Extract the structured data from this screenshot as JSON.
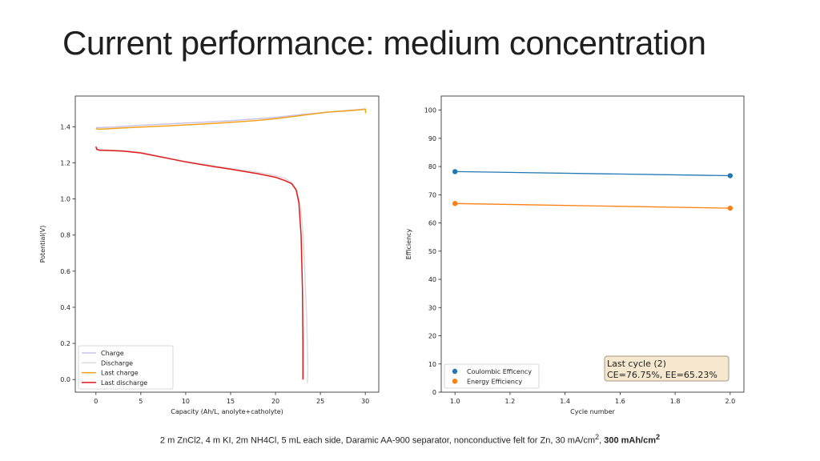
{
  "slide": {
    "title": "Current performance: medium concentration",
    "caption_pre": "2 m ZnCl2, 4 m KI, 2m NH4Cl, 5 mL each side, Daramic AA-900 separator, nonconductive felt for Zn, 30 mA/cm",
    "caption_sup": "2",
    "caption_sep": ", ",
    "caption_bold": "300 mAh/cm",
    "caption_bold_sup": "2"
  },
  "chart_data": [
    {
      "type": "line",
      "title": "",
      "xlabel": "Capacity (Ah/L, anolyte+catholyte)",
      "ylabel": "Potential(V)",
      "xlim": [
        -2.3,
        31.5
      ],
      "ylim": [
        -0.07,
        1.57
      ],
      "xticks": [
        0,
        5,
        10,
        15,
        20,
        25,
        30
      ],
      "yticks": [
        0.0,
        0.2,
        0.4,
        0.6,
        0.8,
        1.0,
        1.2,
        1.4
      ],
      "grid": false,
      "legend_position": "lower-left",
      "series": [
        {
          "name": "Charge",
          "color": "#c9c3e6",
          "x": [
            0,
            2,
            5,
            10,
            15,
            20,
            23,
            26,
            28.5,
            30
          ],
          "y": [
            1.395,
            1.398,
            1.408,
            1.42,
            1.433,
            1.452,
            1.468,
            1.482,
            1.492,
            1.498
          ]
        },
        {
          "name": "Discharge",
          "color": "#dcdcdc",
          "x": [
            0,
            0.2,
            1,
            3,
            5,
            8,
            10,
            13,
            15,
            18,
            20,
            21,
            21.7,
            22.3,
            22.8,
            23.1,
            23.3,
            23.5,
            23.6,
            23.55
          ],
          "y": [
            1.285,
            1.275,
            1.272,
            1.268,
            1.258,
            1.228,
            1.208,
            1.185,
            1.17,
            1.148,
            1.13,
            1.115,
            1.095,
            1.055,
            0.96,
            0.79,
            0.55,
            0.3,
            0.06,
            -0.02
          ]
        },
        {
          "name": "Last charge",
          "color": "#f5a21b",
          "x": [
            0,
            0.3,
            1,
            3,
            5,
            8,
            10,
            13,
            15,
            18,
            20,
            22,
            24,
            25,
            26,
            27,
            28,
            29,
            29.5,
            30,
            30.05
          ],
          "y": [
            1.39,
            1.386,
            1.388,
            1.393,
            1.398,
            1.405,
            1.41,
            1.418,
            1.424,
            1.435,
            1.445,
            1.457,
            1.47,
            1.476,
            1.482,
            1.485,
            1.488,
            1.492,
            1.494,
            1.498,
            1.475
          ]
        },
        {
          "name": "Last discharge",
          "color": "#e31a1c",
          "x": [
            0,
            0.1,
            0.4,
            1,
            3,
            5,
            8,
            10,
            13,
            15,
            18,
            20,
            21,
            21.8,
            22.3,
            22.6,
            22.85,
            23.0,
            23.05,
            23.05
          ],
          "y": [
            1.29,
            1.275,
            1.27,
            1.269,
            1.265,
            1.255,
            1.225,
            1.205,
            1.18,
            1.165,
            1.14,
            1.12,
            1.103,
            1.085,
            1.05,
            0.98,
            0.8,
            0.5,
            0.2,
            0.0
          ]
        }
      ]
    },
    {
      "type": "line",
      "title": "",
      "xlabel": "Cycle number",
      "ylabel": "Efficiency",
      "xlim": [
        0.95,
        2.05
      ],
      "ylim": [
        0,
        105
      ],
      "xticks": [
        1.0,
        1.2,
        1.4,
        1.6,
        1.8,
        2.0
      ],
      "yticks": [
        0,
        10,
        20,
        30,
        40,
        50,
        60,
        70,
        80,
        90,
        100
      ],
      "grid": false,
      "legend_position": "lower-left",
      "series": [
        {
          "name": "Coulombic Efficency",
          "color": "#1f77b4",
          "x": [
            1.0,
            2.0
          ],
          "y": [
            78.2,
            76.75
          ]
        },
        {
          "name": "Energy Efficiency",
          "color": "#ff7f0e",
          "x": [
            1.0,
            2.0
          ],
          "y": [
            66.9,
            65.23
          ]
        }
      ],
      "annotation": {
        "line1": "Last cycle (2)",
        "line2": " CE=76.75%, EE=65.23%",
        "position": "lower-right",
        "background": "#f5e8cf"
      }
    }
  ]
}
